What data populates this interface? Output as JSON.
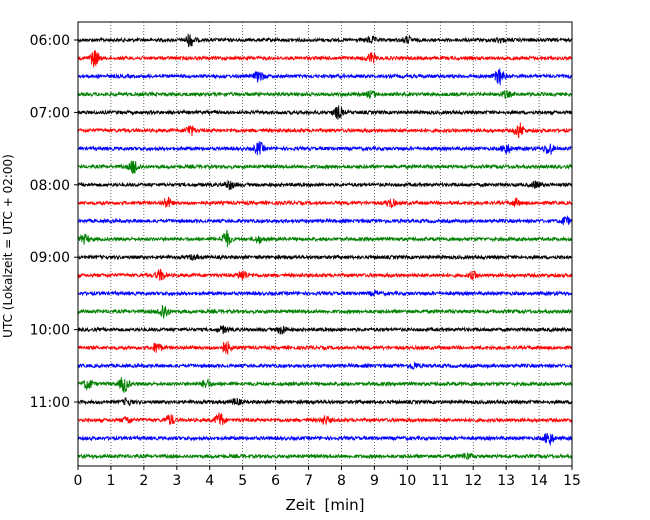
{
  "chart_data": {
    "type": "line",
    "title": "",
    "xlabel": "Zeit  [min]",
    "ylabel": "UTC (Lokalzeit = UTC + 02:00)",
    "xlim": [
      0,
      15
    ],
    "x_ticks": [
      "0",
      "1",
      "2",
      "3",
      "4",
      "5",
      "6",
      "7",
      "8",
      "9",
      "10",
      "11",
      "12",
      "13",
      "14",
      "15"
    ],
    "y_tick_labels": [
      "06:00",
      "07:00",
      "08:00",
      "09:00",
      "10:00",
      "11:00"
    ],
    "grid": "vertical dotted lines at each minute",
    "trace_interval_min": 15,
    "start_time": "06:00",
    "color_cycle": [
      "#000000",
      "#ff0000",
      "#0000ff",
      "#008000"
    ],
    "traces": [
      {
        "time": "06:00",
        "color": "#000000",
        "events": [
          [
            3.4,
            6
          ],
          [
            8.9,
            3
          ],
          [
            10.0,
            3
          ],
          [
            12.8,
            2
          ]
        ]
      },
      {
        "time": "06:15",
        "color": "#ff0000",
        "events": [
          [
            0.5,
            8
          ],
          [
            8.9,
            5
          ]
        ]
      },
      {
        "time": "06:30",
        "color": "#0000ff",
        "events": [
          [
            5.5,
            5
          ],
          [
            12.8,
            8
          ]
        ]
      },
      {
        "time": "06:45",
        "color": "#008000",
        "events": [
          [
            8.9,
            3
          ],
          [
            13.0,
            3
          ]
        ]
      },
      {
        "time": "07:00",
        "color": "#000000",
        "events": [
          [
            7.9,
            6
          ]
        ]
      },
      {
        "time": "07:15",
        "color": "#ff0000",
        "events": [
          [
            3.4,
            5
          ],
          [
            13.4,
            7
          ]
        ]
      },
      {
        "time": "07:30",
        "color": "#0000ff",
        "events": [
          [
            5.5,
            6
          ],
          [
            13.0,
            5
          ],
          [
            14.3,
            6
          ]
        ]
      },
      {
        "time": "07:45",
        "color": "#008000",
        "events": [
          [
            1.7,
            7
          ]
        ]
      },
      {
        "time": "08:00",
        "color": "#000000",
        "events": [
          [
            4.6,
            4
          ],
          [
            13.9,
            3
          ]
        ]
      },
      {
        "time": "08:15",
        "color": "#ff0000",
        "events": [
          [
            2.7,
            5
          ],
          [
            9.5,
            4
          ],
          [
            13.3,
            3
          ]
        ]
      },
      {
        "time": "08:30",
        "color": "#0000ff",
        "events": [
          [
            14.8,
            4
          ]
        ]
      },
      {
        "time": "08:45",
        "color": "#008000",
        "events": [
          [
            0.2,
            4
          ],
          [
            4.5,
            8
          ],
          [
            5.5,
            3
          ]
        ]
      },
      {
        "time": "09:00",
        "color": "#000000",
        "events": [
          [
            3.5,
            2
          ]
        ]
      },
      {
        "time": "09:15",
        "color": "#ff0000",
        "events": [
          [
            2.5,
            5
          ],
          [
            5.0,
            5
          ],
          [
            12.0,
            3
          ]
        ]
      },
      {
        "time": "09:30",
        "color": "#0000ff",
        "events": [
          [
            9.0,
            2
          ]
        ]
      },
      {
        "time": "09:45",
        "color": "#008000",
        "events": [
          [
            2.6,
            8
          ]
        ]
      },
      {
        "time": "10:00",
        "color": "#000000",
        "events": [
          [
            4.4,
            3
          ],
          [
            6.2,
            4
          ]
        ]
      },
      {
        "time": "10:15",
        "color": "#ff0000",
        "events": [
          [
            2.4,
            5
          ],
          [
            4.5,
            6
          ]
        ]
      },
      {
        "time": "10:30",
        "color": "#0000ff",
        "events": [
          [
            10.2,
            3
          ]
        ]
      },
      {
        "time": "10:45",
        "color": "#008000",
        "events": [
          [
            0.3,
            5
          ],
          [
            1.4,
            8
          ],
          [
            3.9,
            4
          ]
        ]
      },
      {
        "time": "11:00",
        "color": "#000000",
        "events": [
          [
            1.5,
            3
          ],
          [
            4.8,
            3
          ]
        ]
      },
      {
        "time": "11:15",
        "color": "#ff0000",
        "events": [
          [
            1.5,
            3
          ],
          [
            2.8,
            5
          ],
          [
            4.3,
            7
          ],
          [
            7.5,
            4
          ]
        ]
      },
      {
        "time": "11:30",
        "color": "#0000ff",
        "events": [
          [
            14.3,
            7
          ]
        ]
      },
      {
        "time": "11:45",
        "color": "#008000",
        "events": [
          [
            11.8,
            3
          ]
        ]
      }
    ]
  }
}
